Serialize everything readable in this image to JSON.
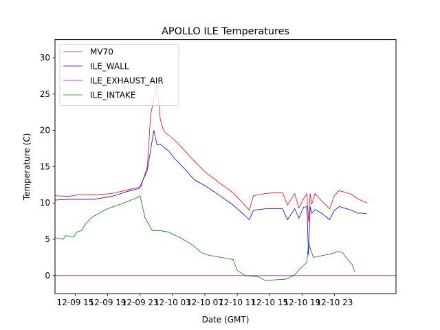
{
  "chart_data": {
    "type": "line",
    "title": "APOLLO ILE Temperatures",
    "xlabel": "Date (GMT)",
    "ylabel": "Temperature (C)",
    "x_unit": "hours since 12-09 09:00 GMT",
    "xlim": [
      3.5,
      45.6
    ],
    "ylim": [
      -2.5,
      32.5
    ],
    "x_ticks": [
      {
        "x": 6,
        "label": "12-09 15"
      },
      {
        "x": 10,
        "label": "12-09 19"
      },
      {
        "x": 14,
        "label": "12-09 23"
      },
      {
        "x": 18,
        "label": "12-10 03"
      },
      {
        "x": 22,
        "label": "12-10 07"
      },
      {
        "x": 26,
        "label": "12-10 11"
      },
      {
        "x": 30,
        "label": "12-10 15"
      },
      {
        "x": 34,
        "label": "12-10 19"
      },
      {
        "x": 38,
        "label": "12-10 23"
      }
    ],
    "y_ticks": [
      0,
      5,
      10,
      15,
      20,
      25,
      30
    ],
    "grid": false,
    "legend_position": "top-left",
    "series": [
      {
        "name": "MV70",
        "color": "#ff0000",
        "x": [
          3.5,
          5.2,
          6.2,
          8.3,
          10.5,
          12.5,
          14.1,
          14.9,
          15.3,
          15.8,
          16.1,
          16.5,
          16.9,
          17.3,
          17.7,
          18.3,
          19.2,
          20.5,
          22,
          24,
          25.5,
          26.5,
          27.5,
          28,
          29.5,
          30.5,
          31.6,
          32.2,
          33.1,
          33.6,
          34.2,
          34.6,
          34.8,
          35,
          35.2,
          35.6,
          36.4,
          37.4,
          38,
          38.6,
          40.1,
          40.8,
          41.4,
          42
        ],
        "y": [
          11,
          10.9,
          11.1,
          11.1,
          11.3,
          11.8,
          12.2,
          15,
          22,
          25,
          26.3,
          21.5,
          20,
          19.5,
          19.2,
          18.6,
          17.6,
          16,
          14.3,
          12.6,
          11.4,
          10.2,
          9,
          11,
          11.3,
          11.4,
          11.4,
          9.7,
          11.3,
          9.3,
          10.6,
          11.3,
          7.4,
          11.3,
          9.8,
          11.3,
          10.3,
          9.2,
          11,
          11.7,
          11.2,
          10.6,
          10.3,
          10
        ]
      },
      {
        "name": "ILE_WALL",
        "color": "#0000ff",
        "x": [
          3.5,
          5.2,
          6.2,
          8.3,
          10.5,
          12.5,
          13.9,
          14.9,
          15.7,
          16.1,
          16.5,
          17,
          17.5,
          18.2,
          19.5,
          20.7,
          22,
          24,
          25.5,
          26.5,
          27.5,
          28,
          29.5,
          30.5,
          31.6,
          32.2,
          33.1,
          33.6,
          34.2,
          34.6,
          34.8,
          35,
          35.2,
          35.6,
          36.4,
          37.4,
          38,
          38.6,
          40.1,
          40.8,
          41.4,
          42
        ],
        "y": [
          10.4,
          10.5,
          10.5,
          10.5,
          10.9,
          11.6,
          12,
          14.5,
          20,
          18,
          18.1,
          17.6,
          17.2,
          16.2,
          14.7,
          13.2,
          12.4,
          10.9,
          9.7,
          8.7,
          7.7,
          9,
          9.2,
          9.2,
          9.2,
          7.7,
          9.2,
          7.9,
          9.4,
          9.5,
          2.8,
          9.5,
          8.6,
          9.1,
          8.6,
          7.7,
          9,
          9.5,
          9,
          8.6,
          8.6,
          8.5
        ]
      },
      {
        "name": "ILE_EXHAUST_AIR",
        "color": "#bf00bf",
        "x": [
          3.5,
          45.6
        ],
        "y": [
          0,
          0
        ]
      },
      {
        "name": "ILE_INTAKE",
        "color": "#008000",
        "x": [
          3.5,
          4.5,
          4.8,
          5.8,
          6.2,
          6.8,
          7.2,
          8,
          10,
          12,
          13.8,
          14,
          14.6,
          15.5,
          16.4,
          17.5,
          19,
          20.5,
          21.5,
          22.5,
          24,
          25.5,
          26,
          27,
          28.7,
          29.5,
          30.5,
          32,
          33,
          33.8,
          34.6,
          34.8,
          35.4,
          36.3,
          37.6,
          38.4,
          39,
          39.5,
          40.2,
          40.5
        ],
        "y": [
          5.2,
          5,
          5.5,
          5.3,
          6,
          6.2,
          7,
          8,
          9.2,
          10,
          10.8,
          11,
          8,
          6.2,
          6.2,
          6,
          5.2,
          4.2,
          3.2,
          2.8,
          2.5,
          2.2,
          0.7,
          0,
          -0.2,
          -0.7,
          -0.6,
          -0.5,
          0,
          1,
          1.8,
          4.5,
          2.5,
          2.7,
          3,
          3.3,
          3.2,
          2.4,
          1.5,
          0.5
        ]
      }
    ]
  }
}
